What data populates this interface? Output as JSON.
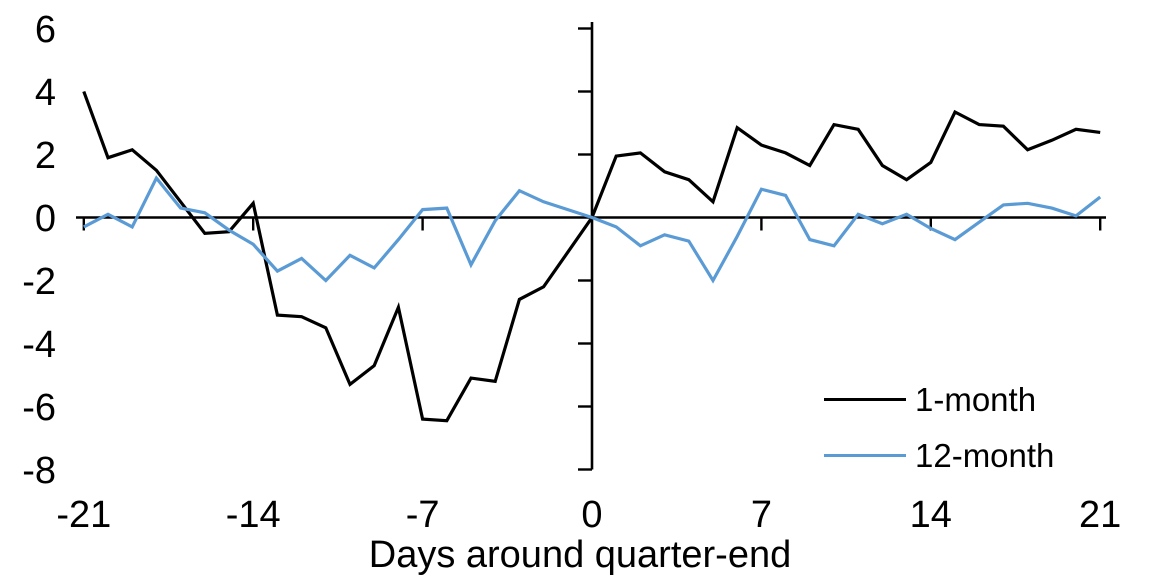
{
  "chart_data": {
    "type": "line",
    "title": "",
    "xlabel": "Days around quarter-end",
    "ylabel": "",
    "xlim": [
      -21,
      21
    ],
    "ylim": [
      -8,
      6
    ],
    "grid": false,
    "x_ticks": [
      -21,
      -14,
      -7,
      0,
      7,
      14,
      21
    ],
    "y_ticks": [
      6,
      4,
      2,
      0,
      -2,
      -4,
      -6,
      -8
    ],
    "x": [
      -21,
      -20,
      -19,
      -18,
      -17,
      -16,
      -15,
      -14,
      -13,
      -12,
      -11,
      -10,
      -9,
      -8,
      -7,
      -6,
      -5,
      -4,
      -3,
      -2,
      -1,
      0,
      1,
      2,
      3,
      4,
      5,
      6,
      7,
      8,
      9,
      10,
      11,
      12,
      13,
      14,
      15,
      16,
      17,
      18,
      19,
      20,
      21
    ],
    "series": [
      {
        "name": "1-month",
        "color": "#000000",
        "values": [
          4.0,
          1.9,
          2.15,
          1.5,
          0.5,
          -0.5,
          -0.45,
          0.45,
          -3.1,
          -3.15,
          -3.5,
          -5.3,
          -4.7,
          -2.85,
          -6.4,
          -6.45,
          -5.1,
          -5.2,
          -2.6,
          -2.2,
          -1.1,
          0.0,
          1.95,
          2.05,
          1.45,
          1.2,
          0.5,
          2.85,
          2.3,
          2.05,
          1.65,
          2.95,
          2.8,
          1.65,
          1.2,
          1.75,
          3.35,
          2.95,
          2.9,
          2.15,
          2.45,
          2.8,
          2.7
        ]
      },
      {
        "name": "12-month",
        "color": "#5B9BD5",
        "values": [
          -0.3,
          0.1,
          -0.3,
          1.25,
          0.3,
          0.15,
          -0.4,
          -0.85,
          -1.7,
          -1.3,
          -2.0,
          -1.2,
          -1.6,
          -0.7,
          0.25,
          0.3,
          -1.5,
          -0.1,
          0.85,
          0.5,
          0.25,
          0.0,
          -0.3,
          -0.9,
          -0.55,
          -0.75,
          -2.0,
          -0.6,
          0.9,
          0.7,
          -0.7,
          -0.9,
          0.1,
          -0.2,
          0.1,
          -0.35,
          -0.7,
          -0.15,
          0.4,
          0.45,
          0.3,
          0.05,
          0.65
        ]
      }
    ],
    "legend": {
      "position": "inside-right-lower",
      "items": [
        "1-month",
        "12-month"
      ]
    }
  }
}
